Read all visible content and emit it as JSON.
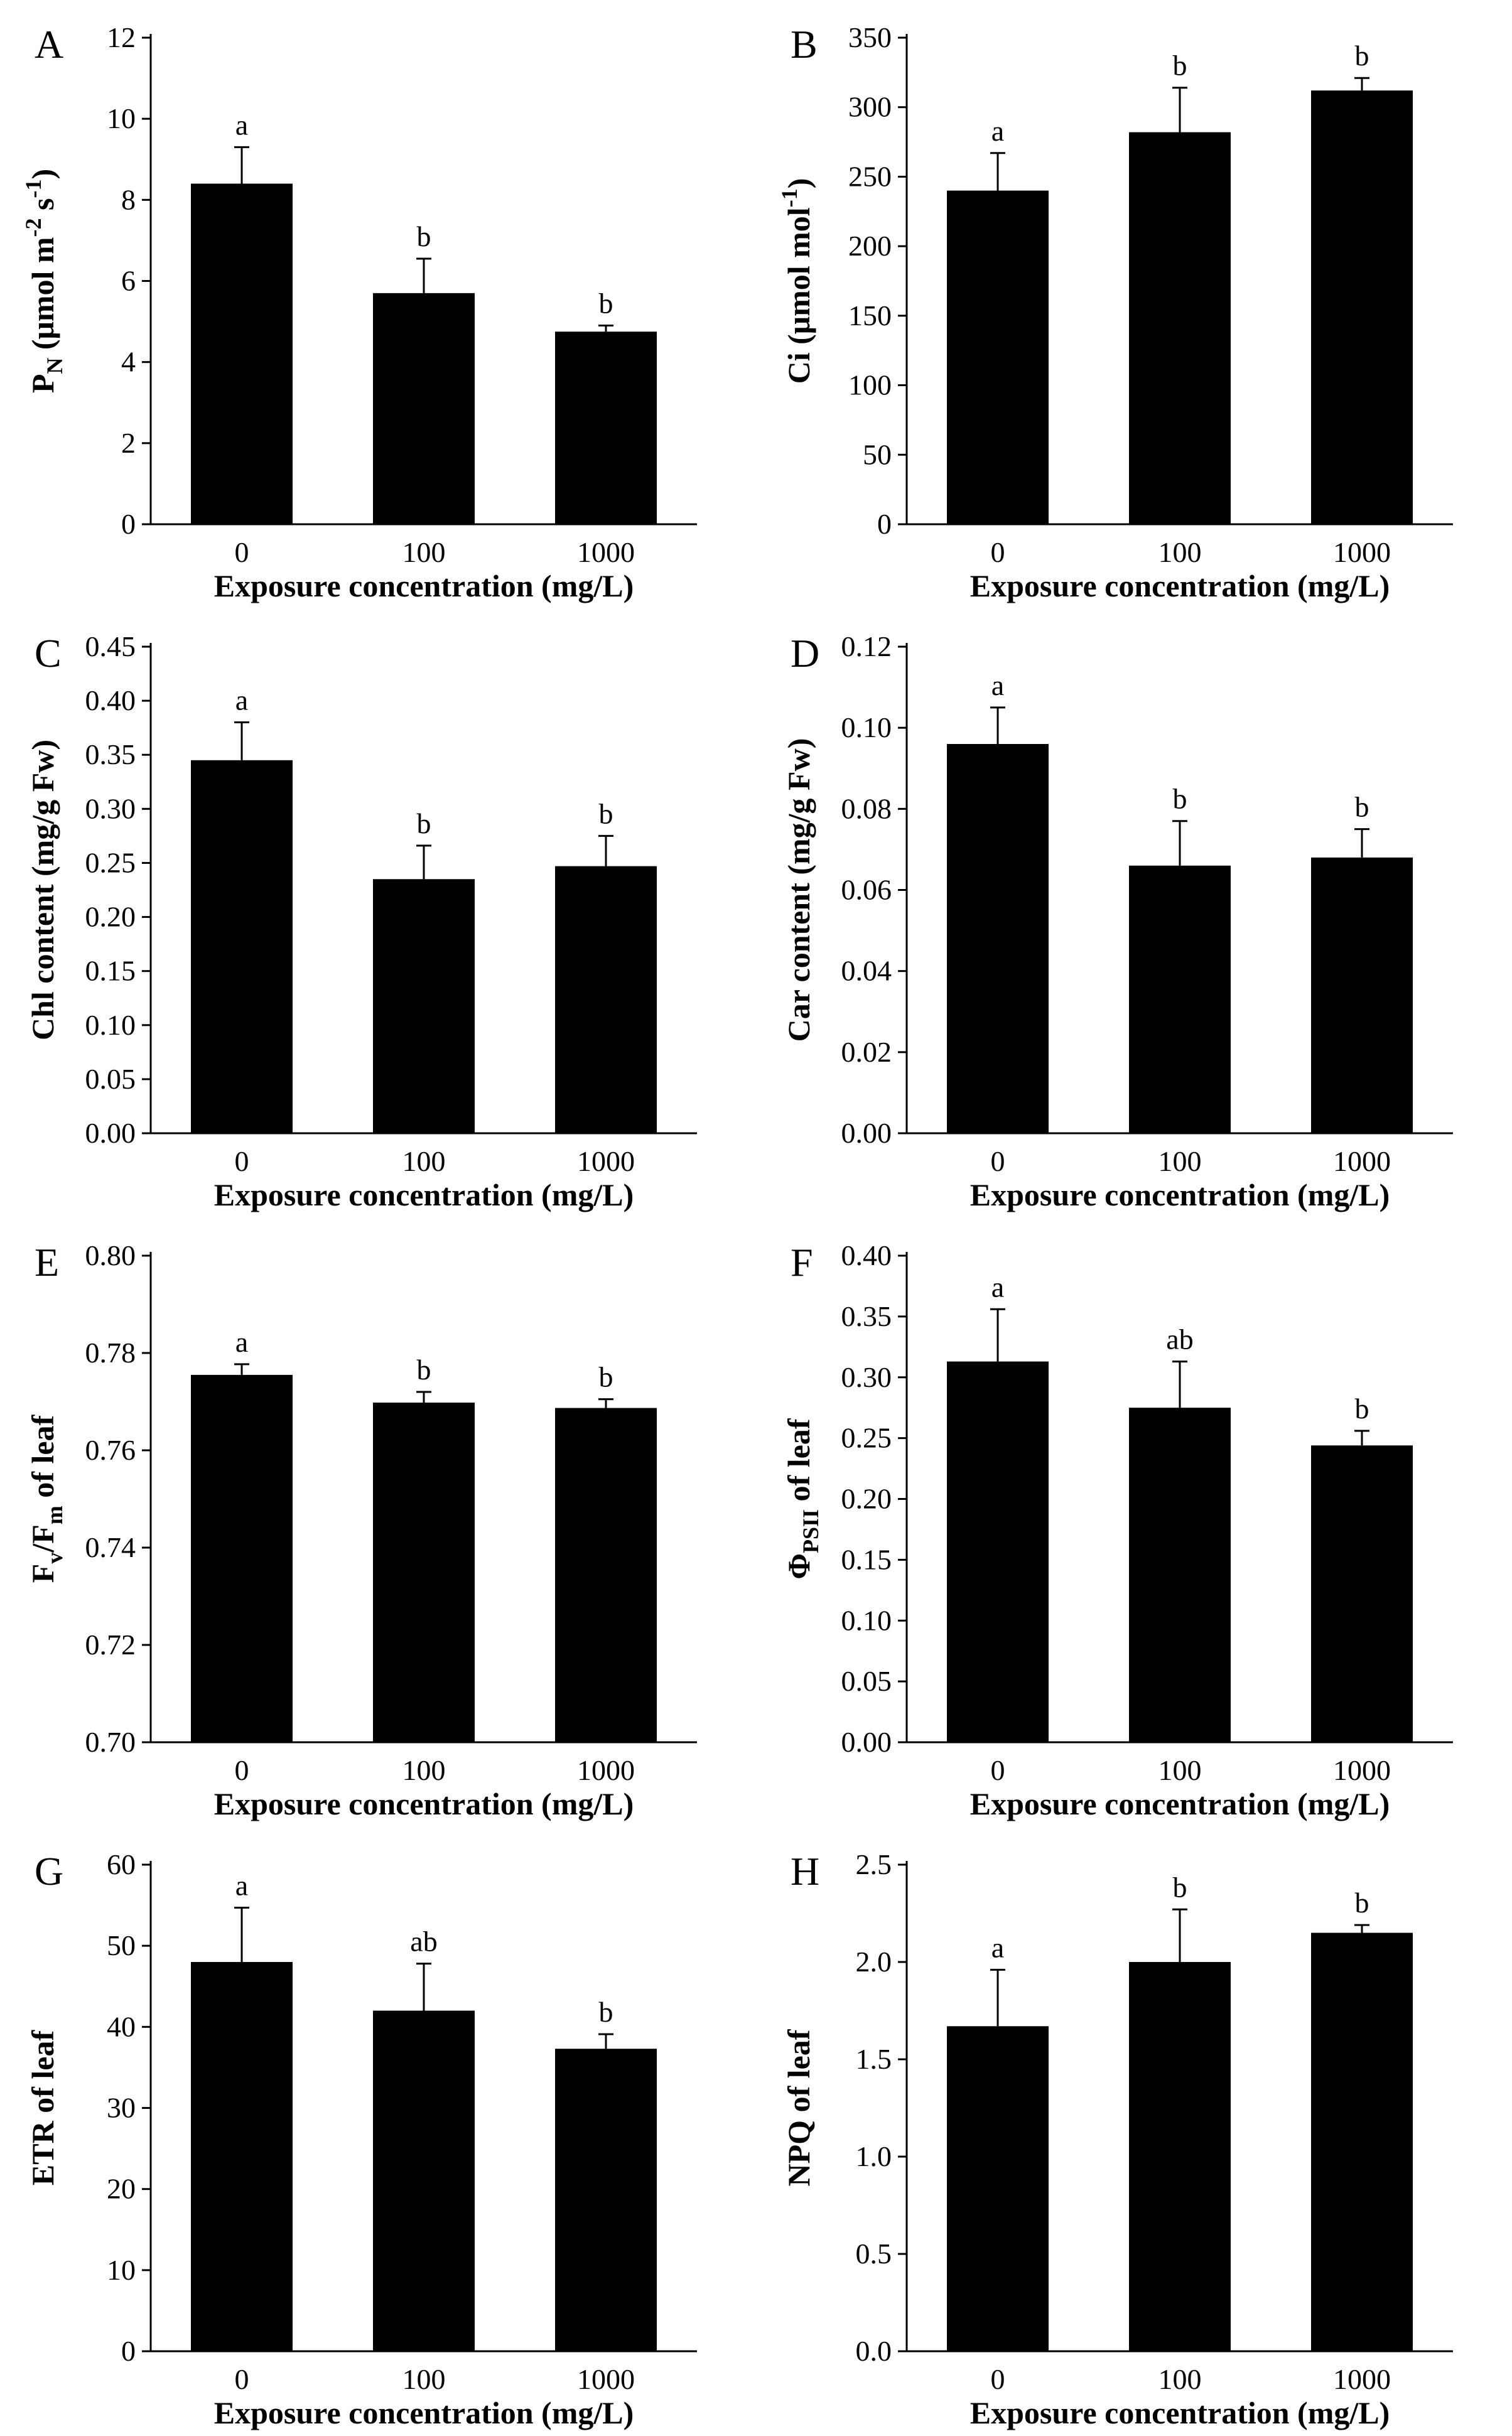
{
  "chart_data": [
    {
      "type": "bar",
      "panel": "A",
      "categories": [
        "0",
        "100",
        "1000"
      ],
      "values": [
        8.4,
        5.7,
        4.75
      ],
      "errors": [
        0.9,
        0.85,
        0.15
      ],
      "significance": [
        "a",
        "b",
        "b"
      ],
      "ylim": [
        0,
        12
      ],
      "yticks": [
        "0",
        "2",
        "4",
        "6",
        "8",
        "10",
        "12"
      ],
      "ylabel_parts": [
        [
          "P"
        ],
        [
          "N",
          "sub"
        ],
        [
          " (μmol m"
        ],
        [
          "-2",
          "sup"
        ],
        [
          " s"
        ],
        [
          "-1",
          "sup"
        ],
        [
          ")"
        ]
      ],
      "xlabel": "Exposure concentration (mg/L)"
    },
    {
      "type": "bar",
      "panel": "B",
      "categories": [
        "0",
        "100",
        "1000"
      ],
      "values": [
        240,
        282,
        312
      ],
      "errors": [
        27,
        32,
        9
      ],
      "significance": [
        "a",
        "b",
        "b"
      ],
      "ylim": [
        0,
        350
      ],
      "yticks": [
        "0",
        "50",
        "100",
        "150",
        "200",
        "250",
        "300",
        "350"
      ],
      "ylabel_parts": [
        [
          "Ci (μmol mol"
        ],
        [
          "-1",
          "sup"
        ],
        [
          ")"
        ]
      ],
      "xlabel": "Exposure concentration (mg/L)"
    },
    {
      "type": "bar",
      "panel": "C",
      "categories": [
        "0",
        "100",
        "1000"
      ],
      "values": [
        0.345,
        0.235,
        0.247
      ],
      "errors": [
        0.035,
        0.031,
        0.028
      ],
      "significance": [
        "a",
        "b",
        "b"
      ],
      "ylim": [
        0,
        0.45
      ],
      "yticks": [
        "0.00",
        "0.05",
        "0.10",
        "0.15",
        "0.20",
        "0.25",
        "0.30",
        "0.35",
        "0.40",
        "0.45"
      ],
      "ylabel_parts": [
        [
          "Chl content (mg/g Fw)"
        ]
      ],
      "xlabel": "Exposure concentration (mg/L)"
    },
    {
      "type": "bar",
      "panel": "D",
      "categories": [
        "0",
        "100",
        "1000"
      ],
      "values": [
        0.096,
        0.066,
        0.068
      ],
      "errors": [
        0.009,
        0.011,
        0.007
      ],
      "significance": [
        "a",
        "b",
        "b"
      ],
      "ylim": [
        0,
        0.12
      ],
      "yticks": [
        "0.00",
        "0.02",
        "0.04",
        "0.06",
        "0.08",
        "0.10",
        "0.12"
      ],
      "ylabel_parts": [
        [
          "Car content (mg/g Fw)"
        ]
      ],
      "xlabel": "Exposure concentration (mg/L)"
    },
    {
      "type": "bar",
      "panel": "E",
      "categories": [
        "0",
        "100",
        "1000"
      ],
      "values": [
        0.7755,
        0.7698,
        0.7687
      ],
      "errors": [
        0.0022,
        0.0022,
        0.0018
      ],
      "significance": [
        "a",
        "b",
        "b"
      ],
      "ylim": [
        0.7,
        0.8
      ],
      "yticks": [
        "0.70",
        "0.72",
        "0.74",
        "0.76",
        "0.78",
        "0.80"
      ],
      "ylabel_parts": [
        [
          "F"
        ],
        [
          "v",
          "sub"
        ],
        [
          "/F"
        ],
        [
          "m",
          "sub"
        ],
        [
          " of leaf"
        ]
      ],
      "xlabel": "Exposure concentration (mg/L)"
    },
    {
      "type": "bar",
      "panel": "F",
      "categories": [
        "0",
        "100",
        "1000"
      ],
      "values": [
        0.313,
        0.275,
        0.244
      ],
      "errors": [
        0.043,
        0.038,
        0.012
      ],
      "significance": [
        "a",
        "ab",
        "b"
      ],
      "ylim": [
        0,
        0.4
      ],
      "yticks": [
        "0.00",
        "0.05",
        "0.10",
        "0.15",
        "0.20",
        "0.25",
        "0.30",
        "0.35",
        "0.40"
      ],
      "ylabel_parts": [
        [
          "Φ"
        ],
        [
          "PSII",
          "sub"
        ],
        [
          " of leaf"
        ]
      ],
      "xlabel": "Exposure concentration (mg/L)"
    },
    {
      "type": "bar",
      "panel": "G",
      "categories": [
        "0",
        "100",
        "1000"
      ],
      "values": [
        48,
        42,
        37.3
      ],
      "errors": [
        6.7,
        5.8,
        1.8
      ],
      "significance": [
        "a",
        "ab",
        "b"
      ],
      "ylim": [
        0,
        60
      ],
      "yticks": [
        "0",
        "10",
        "20",
        "30",
        "40",
        "50",
        "60"
      ],
      "ylabel_parts": [
        [
          "ETR of leaf"
        ]
      ],
      "xlabel": "Exposure concentration (mg/L)"
    },
    {
      "type": "bar",
      "panel": "H",
      "categories": [
        "0",
        "100",
        "1000"
      ],
      "values": [
        1.67,
        2.0,
        2.15
      ],
      "errors": [
        0.29,
        0.27,
        0.04
      ],
      "significance": [
        "a",
        "b",
        "b"
      ],
      "ylim": [
        0,
        2.5
      ],
      "yticks": [
        "0.0",
        "0.5",
        "1.0",
        "1.5",
        "2.0",
        "2.5"
      ],
      "ylabel_parts": [
        [
          "NPQ of leaf"
        ]
      ],
      "xlabel": "Exposure concentration (mg/L)"
    }
  ]
}
